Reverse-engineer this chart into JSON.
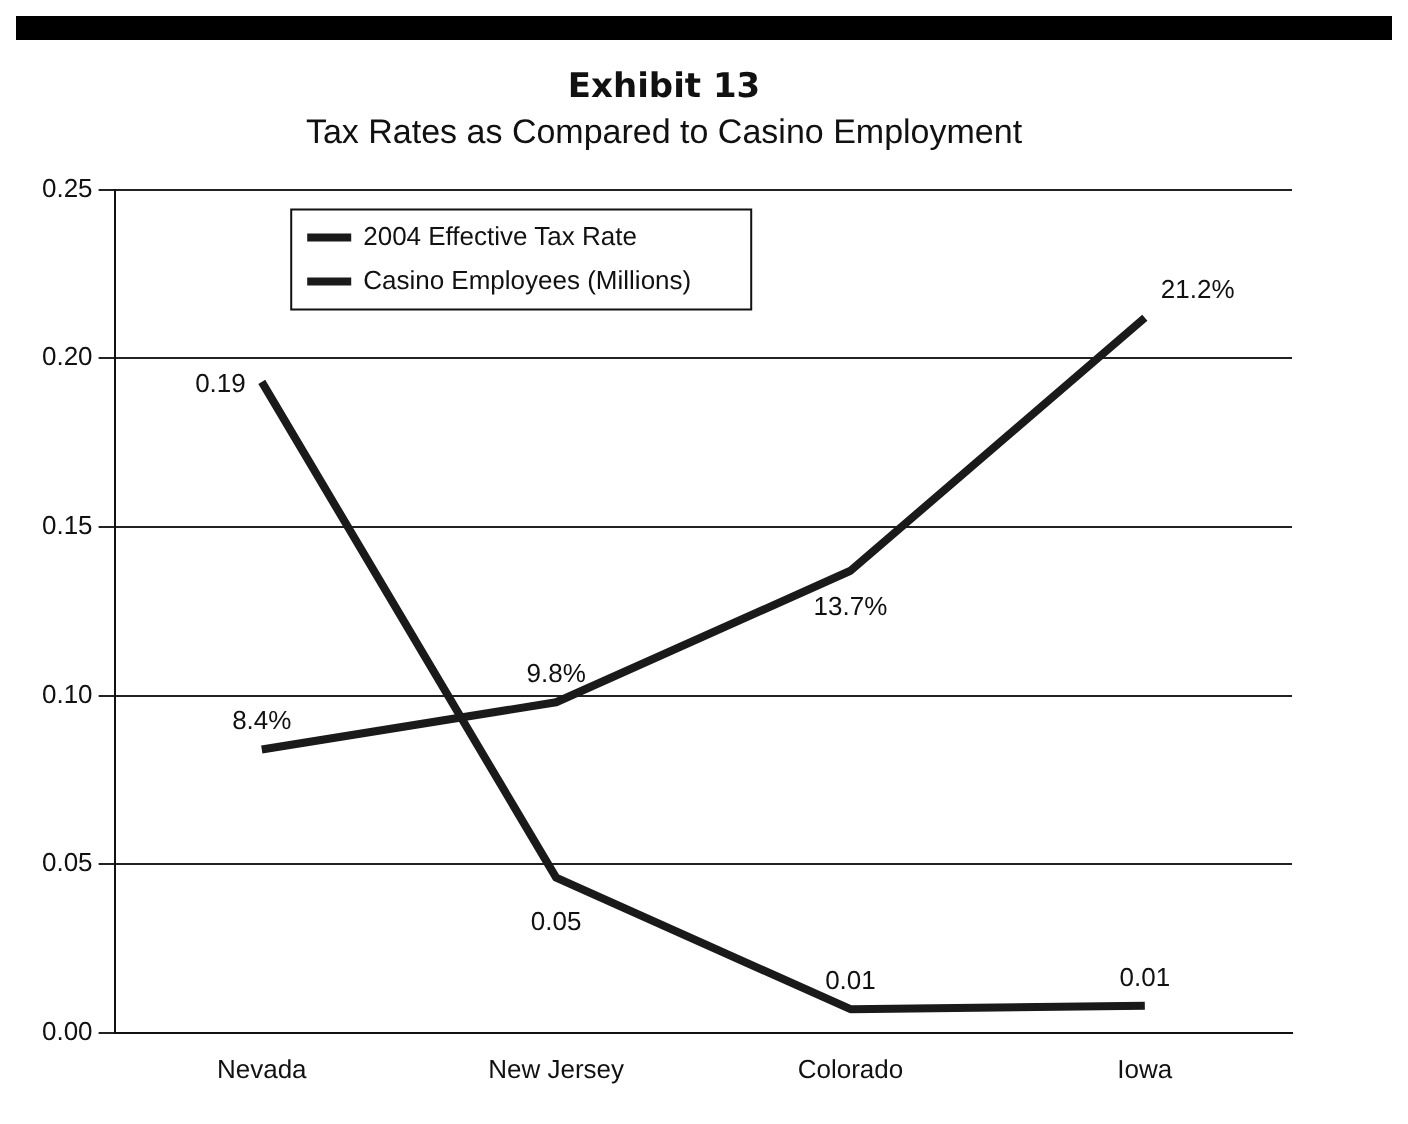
{
  "chart_data": {
    "type": "line",
    "title": "Exhibit 13",
    "subtitle": "Tax Rates as Compared to Casino Employment",
    "categories": [
      "Nevada",
      "New Jersey",
      "Colorado",
      "Iowa"
    ],
    "series": [
      {
        "name": "2004 Effective Tax Rate",
        "color": "#1a1a1a",
        "values": [
          0.084,
          0.098,
          0.137,
          0.212
        ],
        "value_labels": [
          "8.4%",
          "9.8%",
          "13.7%",
          "21.2%"
        ]
      },
      {
        "name": "Casino Employees (Millions)",
        "color": "#1a1a1a",
        "values": [
          0.193,
          0.046,
          0.007,
          0.008
        ],
        "value_labels": [
          "0.19",
          "0.05",
          "0.01",
          "0.01"
        ]
      }
    ],
    "ylim": [
      0,
      0.25
    ],
    "yticks": [
      "0.00",
      "0.05",
      "0.10",
      "0.15",
      "0.20",
      "0.25"
    ],
    "grid": "y",
    "legend": "top left",
    "marker": "none",
    "line_style": "solid"
  }
}
